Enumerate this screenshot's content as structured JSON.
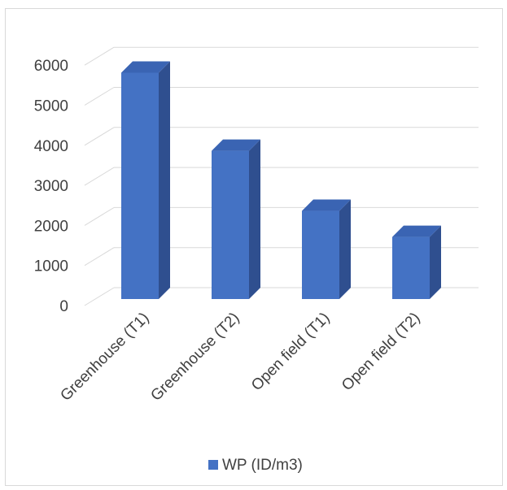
{
  "chart_data": {
    "type": "bar",
    "categories": [
      "Greenhouse (T1)",
      "Greenhouse (T2)",
      "Open field (T1)",
      "Open field (T2)"
    ],
    "series": [
      {
        "name": "WP (ID/m3)",
        "values": [
          5650,
          3700,
          2200,
          1550
        ]
      }
    ],
    "ylim": [
      0,
      6000
    ],
    "yticks": [
      0,
      1000,
      2000,
      3000,
      4000,
      5000,
      6000
    ],
    "grid": true,
    "legend_position": "bottom",
    "style": "3d-column",
    "colors": {
      "bar_front": "#4472c4",
      "bar_side": "#2f4f8f",
      "bar_top": "#3a64b3",
      "grid": "#d9d9d9",
      "text": "#404040"
    }
  }
}
